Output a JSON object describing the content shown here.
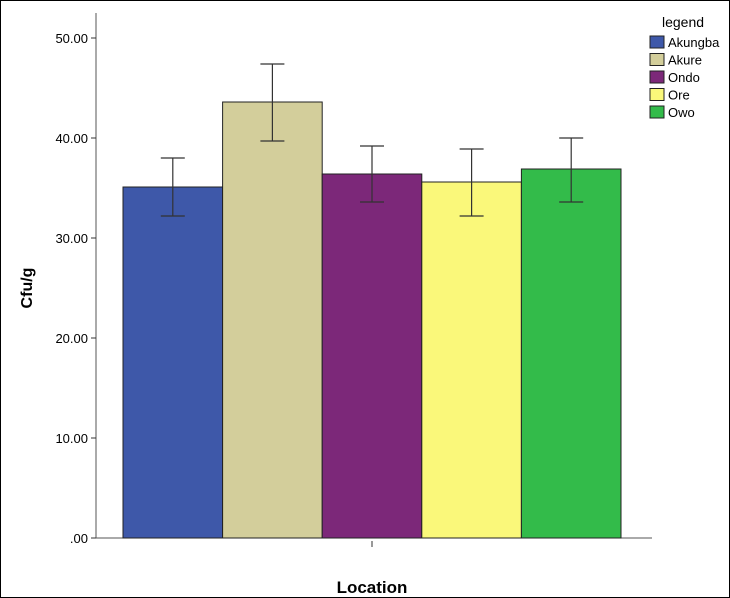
{
  "chart_data": {
    "type": "bar",
    "title": "",
    "xlabel": "Location",
    "ylabel": "Cfu/g",
    "ylim": [
      0,
      52
    ],
    "yticks": [
      ".00",
      "10.00",
      "20.00",
      "30.00",
      "40.00",
      "50.00"
    ],
    "ytick_values": [
      0,
      10,
      20,
      30,
      40,
      50
    ],
    "grid": false,
    "legend_title": "legend",
    "legend_position": "top-right",
    "series": [
      {
        "name": "Akungba",
        "value": 35.1,
        "error_low": 32.2,
        "error_high": 38.0,
        "color": "#3E58A9"
      },
      {
        "name": "Akure",
        "value": 43.6,
        "error_low": 39.7,
        "error_high": 47.4,
        "color": "#D3CE9B"
      },
      {
        "name": "Ondo",
        "value": 36.4,
        "error_low": 33.6,
        "error_high": 39.2,
        "color": "#7C2879"
      },
      {
        "name": "Ore",
        "value": 35.6,
        "error_low": 32.2,
        "error_high": 38.9,
        "color": "#FAF87A"
      },
      {
        "name": "Owo",
        "value": 36.9,
        "error_low": 33.6,
        "error_high": 40.0,
        "color": "#33BB4A"
      }
    ]
  }
}
